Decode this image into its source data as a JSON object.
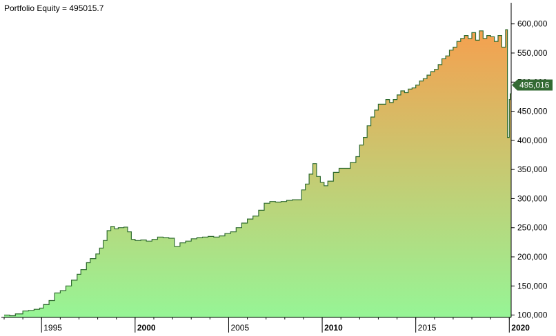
{
  "title": "Portfolio Equity = 495015.7",
  "colors": {
    "line": "#2f6b2f",
    "fill_top": "#f5a04f",
    "fill_bottom": "#96f596",
    "axis": "#000000",
    "label_bg": "#336a33",
    "label_text": "#ffffff"
  },
  "chart_data": {
    "type": "area",
    "title": "Portfolio Equity = 495015.7",
    "xlim": [
      1993.0,
      2020.1
    ],
    "ylim": [
      96000,
      615000
    ],
    "yticks": [
      100000,
      150000,
      200000,
      250000,
      300000,
      350000,
      400000,
      450000,
      500000,
      550000,
      600000
    ],
    "ytick_labels": [
      "100,000",
      "150,000",
      "200,000",
      "250,000",
      "300,000",
      "350,000",
      "400,000",
      "450,000",
      "500,000",
      "550,000",
      "600,000"
    ],
    "xticks": [
      1995,
      2000,
      2005,
      2010,
      2015,
      2020
    ],
    "xtick_labels": [
      "1995",
      "2000",
      "2005",
      "2010",
      "2015",
      "2020"
    ],
    "xtick_bold": [
      false,
      true,
      false,
      true,
      false,
      true
    ],
    "last_value": 495015.7,
    "last_value_label": "495,016",
    "grid": false,
    "series": [
      {
        "x": [
          1993.0,
          1993.3,
          1993.6,
          1994.0,
          1994.3,
          1994.6,
          1994.9,
          1995.1,
          1995.4,
          1995.7,
          1996.0,
          1996.3,
          1996.6,
          1996.9,
          1997.1,
          1997.4,
          1997.6,
          1997.9,
          1998.1,
          1998.3,
          1998.5,
          1998.7,
          1998.9,
          1999.1,
          1999.4,
          1999.6,
          1999.8,
          2000.0,
          2000.3,
          2000.6,
          2000.9,
          2001.2,
          2001.5,
          2001.8,
          2002.1,
          2002.4,
          2002.7,
          2003.0,
          2003.3,
          2003.6,
          2003.9,
          2004.2,
          2004.5,
          2004.8,
          2005.1,
          2005.4,
          2005.7,
          2006.0,
          2006.3,
          2006.6,
          2006.9,
          2007.2,
          2007.5,
          2007.8,
          2008.1,
          2008.4,
          2008.7,
          2008.9,
          2009.1,
          2009.3,
          2009.5,
          2009.7,
          2009.9,
          2010.1,
          2010.3,
          2010.6,
          2010.9,
          2011.2,
          2011.5,
          2011.8,
          2012.0,
          2012.2,
          2012.4,
          2012.6,
          2012.8,
          2013.0,
          2013.2,
          2013.4,
          2013.6,
          2013.8,
          2014.0,
          2014.2,
          2014.4,
          2014.6,
          2014.8,
          2015.0,
          2015.2,
          2015.4,
          2015.6,
          2015.8,
          2016.0,
          2016.2,
          2016.4,
          2016.6,
          2016.8,
          2017.0,
          2017.2,
          2017.4,
          2017.6,
          2017.8,
          2018.0,
          2018.2,
          2018.4,
          2018.6,
          2018.8,
          2019.0,
          2019.2,
          2019.4,
          2019.6,
          2019.8,
          2019.9,
          2020.0,
          2020.05,
          2020.1
        ],
        "y": [
          100000,
          99000,
          102000,
          107000,
          108000,
          110000,
          112000,
          118000,
          125000,
          138000,
          142000,
          150000,
          160000,
          170000,
          178000,
          190000,
          197000,
          205000,
          215000,
          228000,
          245000,
          252000,
          248000,
          250000,
          251000,
          243000,
          230000,
          228000,
          229000,
          227000,
          230000,
          234000,
          233000,
          232000,
          218000,
          224000,
          227000,
          231000,
          233000,
          234000,
          235000,
          234000,
          236000,
          240000,
          243000,
          250000,
          258000,
          265000,
          270000,
          280000,
          292000,
          295000,
          294000,
          295000,
          297000,
          298000,
          298000,
          315000,
          325000,
          342000,
          360000,
          338000,
          328000,
          322000,
          330000,
          345000,
          352000,
          352000,
          362000,
          372000,
          392000,
          405000,
          425000,
          440000,
          452000,
          462000,
          462000,
          470000,
          465000,
          470000,
          478000,
          485000,
          482000,
          488000,
          490000,
          495000,
          502000,
          506000,
          512000,
          518000,
          522000,
          530000,
          540000,
          545000,
          555000,
          560000,
          570000,
          575000,
          580000,
          575000,
          585000,
          572000,
          588000,
          575000,
          580000,
          578000,
          570000,
          580000,
          560000,
          590000,
          405000,
          470000,
          480000,
          495016
        ]
      }
    ]
  }
}
